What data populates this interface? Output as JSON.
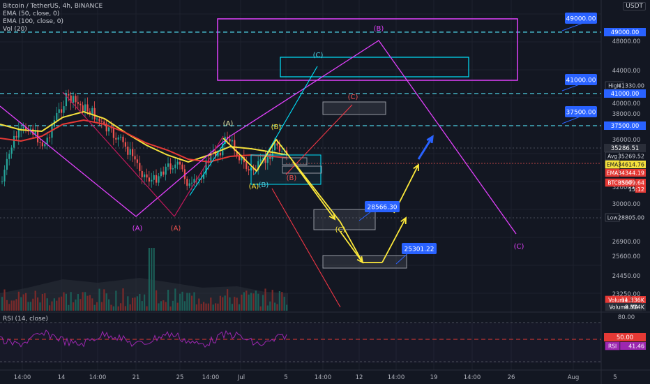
{
  "header": {
    "symbol_line": "Bitcoin / TetherUS, 4h, BINANCE",
    "ema50": "EMA (50, close, 0)",
    "ema100": "EMA (100, close, 0)",
    "vol": "Vol (20)",
    "currency": "USDT"
  },
  "rsi_panel": {
    "title": "RSI (14, close)",
    "levels": [
      80,
      50,
      20
    ]
  },
  "price_scale_labels": [
    "48000.00",
    "44000.00",
    "40000.00",
    "38000.00",
    "36000.00",
    "32000.00",
    "30000.00",
    "26900.00",
    "25600.00",
    "24450.00",
    "23250.00"
  ],
  "rsi_scale_labels": [
    "80.00"
  ],
  "x_axis_labels": [
    "14:00",
    "14",
    "14:00",
    "21",
    "25",
    "14:00",
    "Jul",
    "5",
    "14:00",
    "12",
    "14:00",
    "19",
    "14:00",
    "26",
    "Aug",
    "5"
  ],
  "right_tags": [
    {
      "text": "49000.00",
      "bg": "#2962ff",
      "fg": "#ffffff"
    },
    {
      "text": "High",
      "text2": "41330.00",
      "bg": "#131722",
      "fg": "#d1d4dc"
    },
    {
      "text": "41000.00",
      "bg": "#2962ff",
      "fg": "#ffffff"
    },
    {
      "text": "37500.00",
      "bg": "#2962ff",
      "fg": "#ffffff"
    },
    {
      "text": "35286.51",
      "bg": "#2a2e39",
      "fg": "#ffffff"
    },
    {
      "text": "Avg",
      "text2": "35269.52",
      "bg": "#131722",
      "fg": "#d1d4dc"
    },
    {
      "text": "EMA",
      "text2": "34614.76",
      "bg": "#f5e13c",
      "fg": "#131722"
    },
    {
      "text": "EMA",
      "text2": "34344.19",
      "bg": "#e53935",
      "fg": "#ffffff"
    },
    {
      "text": "BTCUSDT",
      "text2": "33609.64",
      "text3": "15:12",
      "bg": "#e53935",
      "fg": "#ffffff"
    },
    {
      "text": "Low",
      "text2": "28805.00",
      "bg": "#131722",
      "fg": "#d1d4dc"
    },
    {
      "text": "Volume",
      "text2": "11.336K",
      "bg": "#e53935",
      "fg": "#ffffff"
    },
    {
      "text": "Volume MA",
      "text2": "8.314K",
      "bg": "#2a2e39",
      "fg": "#ffffff"
    },
    {
      "text": "50.00",
      "bg": "#e53935",
      "fg": "#ffffff"
    },
    {
      "text": "RSI",
      "text2": "41.46",
      "bg": "#9c27b0",
      "fg": "#ffffff"
    }
  ],
  "callouts": [
    "49000.00",
    "41000.00",
    "37500.00",
    "28566.30",
    "25301.22"
  ],
  "wave_labels": [
    "(A)",
    "(A)",
    "(A)",
    "(B)",
    "(B)",
    "(C)",
    "(C)",
    "(C)",
    "(B)",
    "(A)",
    "(B)",
    "(C)"
  ],
  "colors": {
    "bg": "#131722",
    "grid": "#1e222d",
    "up": "#26a69a",
    "down": "#ef5350",
    "ema50": "#f5e13c",
    "ema100": "#e53935",
    "magenta": "#e040fb",
    "cyan": "#00e5ff",
    "yellow": "#ffeb3b",
    "red": "#f23645",
    "blue": "#2962ff",
    "rsi": "#9c27b0"
  }
}
